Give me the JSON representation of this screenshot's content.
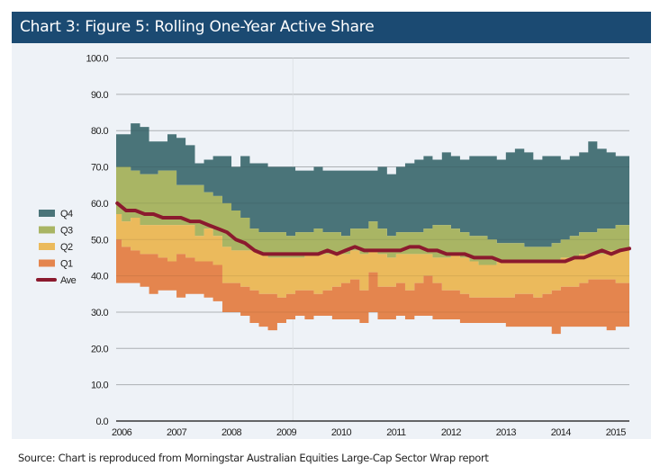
{
  "header": {
    "title": "Chart 3:  Figure 5: Rolling One-Year Active Share"
  },
  "source": "Source: Chart is reproduced from Morningstar Australian Equities Large-Cap Sector Wrap report",
  "colors": {
    "Q4": "#4a7479",
    "Q3": "#a9b564",
    "Q2": "#ebba5c",
    "Q1": "#e4854e",
    "Ave": "#8b1a2e",
    "header": "#1b4a72",
    "panel": "#eef2f7"
  },
  "chart_data": {
    "type": "area",
    "title": "Rolling One-Year Active Share",
    "xlabel": "",
    "ylabel": "",
    "ylim": [
      0,
      100
    ],
    "xlim": [
      2005.9,
      2015.25
    ],
    "yticks": [
      "0.0",
      "10.0",
      "20.0",
      "30.0",
      "40.0",
      "50.0",
      "60.0",
      "70.0",
      "80.0",
      "90.0",
      "100.0"
    ],
    "ytick_values": [
      0,
      10,
      20,
      30,
      40,
      50,
      60,
      70,
      80,
      90,
      100
    ],
    "xticks": [
      "2006",
      "2007",
      "2008",
      "2009",
      "2010",
      "2011",
      "2012",
      "2013",
      "2014",
      "2015"
    ],
    "xtick_values": [
      2006,
      2007,
      2008,
      2009,
      2010,
      2011,
      2012,
      2013,
      2014,
      2015
    ],
    "grid": true,
    "legend": {
      "placement": "left",
      "entries": [
        "Q4",
        "Q3",
        "Q2",
        "Q1",
        "Ave"
      ]
    },
    "x": [
      2005.92,
      2006.08,
      2006.25,
      2006.42,
      2006.58,
      2006.75,
      2006.92,
      2007.08,
      2007.25,
      2007.42,
      2007.58,
      2007.75,
      2007.92,
      2008.08,
      2008.25,
      2008.42,
      2008.58,
      2008.75,
      2008.92,
      2009.08,
      2009.25,
      2009.42,
      2009.58,
      2009.75,
      2009.92,
      2010.08,
      2010.25,
      2010.42,
      2010.58,
      2010.75,
      2010.92,
      2011.08,
      2011.25,
      2011.42,
      2011.58,
      2011.75,
      2011.92,
      2012.08,
      2012.25,
      2012.42,
      2012.58,
      2012.75,
      2012.92,
      2013.08,
      2013.25,
      2013.42,
      2013.58,
      2013.75,
      2013.92,
      2014.08,
      2014.25,
      2014.42,
      2014.58,
      2014.75,
      2014.92,
      2015.08,
      2015.25
    ],
    "series": [
      {
        "name": "Q4 (top of range)",
        "values": [
          79,
          79,
          82,
          81,
          77,
          77,
          79,
          78,
          76,
          71,
          72,
          73,
          73,
          70,
          73,
          71,
          71,
          70,
          70,
          70,
          69,
          69,
          70,
          69,
          69,
          69,
          69,
          69,
          69,
          70,
          68,
          70,
          71,
          72,
          73,
          72,
          74,
          73,
          72,
          73,
          73,
          73,
          72,
          74,
          75,
          74,
          72,
          73,
          73,
          72,
          73,
          74,
          77,
          75,
          74,
          73,
          73
        ]
      },
      {
        "name": "Q3 (upper bound)",
        "values": [
          70,
          70,
          69,
          68,
          68,
          69,
          69,
          65,
          65,
          65,
          63,
          62,
          60,
          58,
          56,
          53,
          52,
          52,
          52,
          51,
          52,
          52,
          53,
          52,
          52,
          51,
          53,
          53,
          55,
          53,
          51,
          52,
          52,
          52,
          53,
          54,
          54,
          53,
          52,
          51,
          51,
          50,
          49,
          49,
          49,
          48,
          48,
          48,
          49,
          50,
          51,
          52,
          52,
          53,
          53,
          54,
          54
        ]
      },
      {
        "name": "Q2 (upper bound)",
        "values": [
          57,
          55,
          56,
          54,
          54,
          54,
          54,
          54,
          54,
          51,
          53,
          51,
          48,
          47,
          47,
          47,
          46,
          45,
          45,
          45,
          45,
          46,
          46,
          46,
          46,
          46,
          47,
          46,
          47,
          46,
          45,
          46,
          46,
          46,
          46,
          45,
          45,
          46,
          45,
          44,
          43,
          43,
          44,
          44,
          44,
          44,
          44,
          44,
          44,
          45,
          45,
          46,
          46,
          46,
          47,
          47,
          47
        ]
      },
      {
        "name": "Q1 (upper bound)",
        "values": [
          50,
          48,
          47,
          46,
          46,
          45,
          44,
          46,
          45,
          44,
          44,
          43,
          38,
          38,
          37,
          36,
          35,
          35,
          34,
          35,
          36,
          36,
          35,
          36,
          37,
          38,
          39,
          36,
          41,
          37,
          37,
          38,
          36,
          38,
          40,
          38,
          36,
          36,
          35,
          34,
          34,
          34,
          34,
          34,
          35,
          35,
          34,
          35,
          36,
          37,
          37,
          38,
          39,
          39,
          39,
          38,
          38
        ]
      },
      {
        "name": "Q1 (bottom of range)",
        "values": [
          38,
          38,
          38,
          37,
          35,
          36,
          36,
          34,
          35,
          35,
          34,
          33,
          30,
          30,
          29,
          27,
          26,
          25,
          27,
          28,
          29,
          28,
          29,
          29,
          28,
          28,
          28,
          27,
          30,
          28,
          28,
          29,
          28,
          29,
          29,
          28,
          28,
          28,
          27,
          27,
          27,
          27,
          27,
          26,
          26,
          26,
          26,
          26,
          24,
          26,
          26,
          26,
          26,
          26,
          25,
          26,
          26
        ]
      },
      {
        "name": "Ave",
        "values": [
          60,
          58,
          58,
          57,
          57,
          56,
          56,
          56,
          55,
          55,
          54,
          53,
          52,
          50,
          49,
          47,
          46,
          46,
          46,
          46,
          46,
          46,
          46,
          47,
          46,
          47,
          48,
          47,
          47,
          47,
          47,
          47,
          48,
          48,
          47,
          47,
          46,
          46,
          46,
          45,
          45,
          45,
          44,
          44,
          44,
          44,
          44,
          44,
          44,
          44,
          45,
          45,
          46,
          47,
          46,
          47,
          47.5
        ]
      }
    ]
  }
}
